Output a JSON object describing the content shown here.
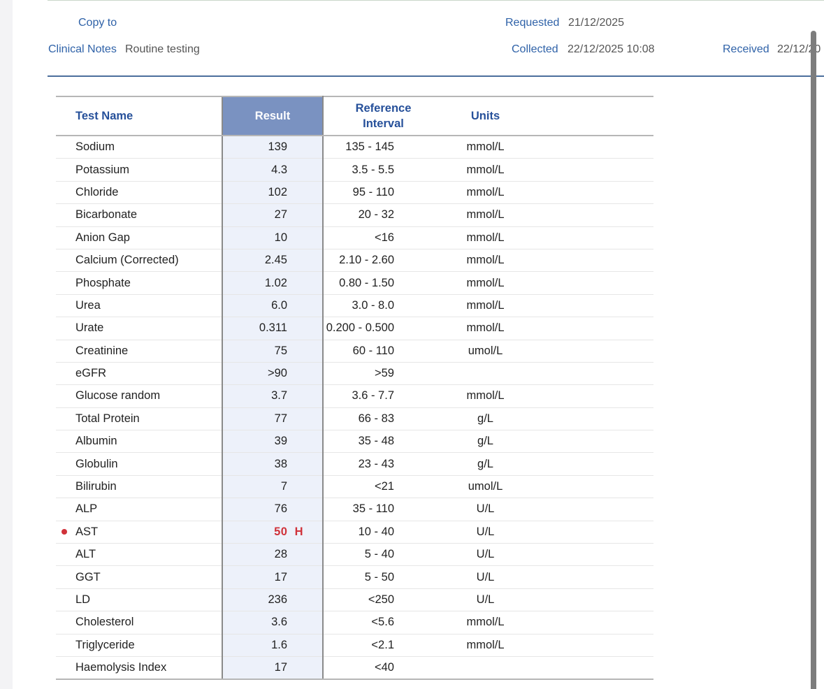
{
  "header": {
    "copy_to_label": "Copy to",
    "clinical_notes_label": "Clinical Notes",
    "clinical_notes_value": "Routine testing",
    "requested_label": "Requested",
    "requested_value": "21/12/2025",
    "collected_label": "Collected",
    "collected_value": "22/12/2025 10:08",
    "received_label": "Received",
    "received_value": "22/12/20"
  },
  "table": {
    "columns": [
      "Test Name",
      "Result",
      "Reference\nInterval",
      "Units"
    ],
    "column_labels": {
      "name": "Test Name",
      "result": "Result",
      "ref_line1": "Reference",
      "ref_line2": "Interval",
      "units": "Units"
    },
    "rows": [
      {
        "name": "Sodium",
        "result": "139",
        "ref": "135 - 145",
        "units": "mmol/L",
        "abnormal": false
      },
      {
        "name": "Potassium",
        "result": "4.3",
        "ref": "3.5 - 5.5",
        "units": "mmol/L",
        "abnormal": false
      },
      {
        "name": "Chloride",
        "result": "102",
        "ref": "95 - 110",
        "units": "mmol/L",
        "abnormal": false
      },
      {
        "name": "Bicarbonate",
        "result": "27",
        "ref": "20 - 32",
        "units": "mmol/L",
        "abnormal": false
      },
      {
        "name": "Anion Gap",
        "result": "10",
        "ref": "<16",
        "units": "mmol/L",
        "abnormal": false
      },
      {
        "name": "Calcium (Corrected)",
        "result": "2.45",
        "ref": "2.10 - 2.60",
        "units": "mmol/L",
        "abnormal": false
      },
      {
        "name": "Phosphate",
        "result": "1.02",
        "ref": "0.80 - 1.50",
        "units": "mmol/L",
        "abnormal": false
      },
      {
        "name": "Urea",
        "result": "6.0",
        "ref": "3.0 - 8.0",
        "units": "mmol/L",
        "abnormal": false
      },
      {
        "name": "Urate",
        "result": "0.311",
        "ref": "0.200 - 0.500",
        "units": "mmol/L",
        "abnormal": false
      },
      {
        "name": "Creatinine",
        "result": "75",
        "ref": "60 - 110",
        "units": "umol/L",
        "abnormal": false
      },
      {
        "name": "eGFR",
        "result": ">90",
        "ref": ">59",
        "units": "",
        "abnormal": false
      },
      {
        "name": "Glucose random",
        "result": "3.7",
        "ref": "3.6 - 7.7",
        "units": "mmol/L",
        "abnormal": false
      },
      {
        "name": "Total Protein",
        "result": "77",
        "ref": "66 - 83",
        "units": "g/L",
        "abnormal": false
      },
      {
        "name": "Albumin",
        "result": "39",
        "ref": "35 - 48",
        "units": "g/L",
        "abnormal": false
      },
      {
        "name": "Globulin",
        "result": "38",
        "ref": "23 - 43",
        "units": "g/L",
        "abnormal": false
      },
      {
        "name": "Bilirubin",
        "result": "7",
        "ref": "<21",
        "units": "umol/L",
        "abnormal": false
      },
      {
        "name": "ALP",
        "result": "76",
        "ref": "35 - 110",
        "units": "U/L",
        "abnormal": false
      },
      {
        "name": "AST",
        "result": "50  H",
        "ref": "10 - 40",
        "units": "U/L",
        "abnormal": true
      },
      {
        "name": "ALT",
        "result": "28",
        "ref": "5 - 40",
        "units": "U/L",
        "abnormal": false
      },
      {
        "name": "GGT",
        "result": "17",
        "ref": "5 - 50",
        "units": "U/L",
        "abnormal": false
      },
      {
        "name": "LD",
        "result": "236",
        "ref": "<250",
        "units": "U/L",
        "abnormal": false
      },
      {
        "name": "Cholesterol",
        "result": "3.6",
        "ref": "<5.6",
        "units": "mmol/L",
        "abnormal": false
      },
      {
        "name": "Triglyceride",
        "result": "1.6",
        "ref": "<2.1",
        "units": "mmol/L",
        "abnormal": false
      },
      {
        "name": "Haemolysis Index",
        "result": "17",
        "ref": "<40",
        "units": "",
        "abnormal": false
      }
    ]
  },
  "colors": {
    "label_blue": "#2f62a8",
    "header_blue": "#26509a",
    "result_header_bg": "#7a92c1",
    "result_column_bg": "#edf1fa",
    "abnormal_red": "#d0323a"
  },
  "icons": {
    "abnormal_marker": "red-dot-icon"
  }
}
